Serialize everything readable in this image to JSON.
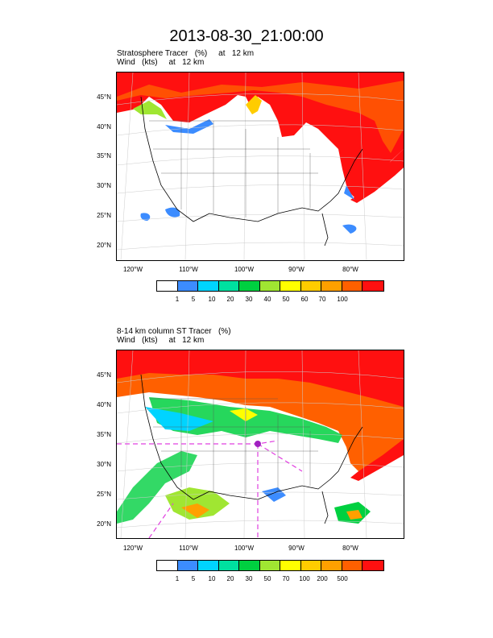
{
  "title": "2013-08-30_21:00:00",
  "panels": [
    {
      "subtitle_line1": "Stratosphere Tracer   (%)     at   12 km",
      "subtitle_line2": "Wind   (kts)     at   12 km",
      "lat_labels": [
        "45°N",
        "40°N",
        "35°N",
        "30°N",
        "25°N",
        "20°N"
      ],
      "lon_labels": [
        "120°W",
        "110°W",
        "100°W",
        "90°W",
        "80°W"
      ],
      "colorbar_labels": [
        "1",
        "5",
        "10",
        "20",
        "30",
        "40",
        "50",
        "60",
        "70",
        "100"
      ]
    },
    {
      "subtitle_line1": "8-14 km column ST Tracer   (%)",
      "subtitle_line2": "Wind   (kts)     at   12 km",
      "lat_labels": [
        "45°N",
        "40°N",
        "35°N",
        "30°N",
        "25°N",
        "20°N"
      ],
      "lon_labels": [
        "120°W",
        "110°W",
        "100°W",
        "90°W",
        "80°W"
      ],
      "colorbar_labels": [
        "1",
        "5",
        "10",
        "20",
        "30",
        "50",
        "70",
        "100",
        "200",
        "500"
      ]
    }
  ],
  "colorbar_colors": [
    "#ffffff",
    "#3c8cff",
    "#00d4ff",
    "#00e0a0",
    "#00d040",
    "#a0e632",
    "#ffff00",
    "#ffcc00",
    "#ffa000",
    "#ff6000",
    "#ff1010"
  ]
}
